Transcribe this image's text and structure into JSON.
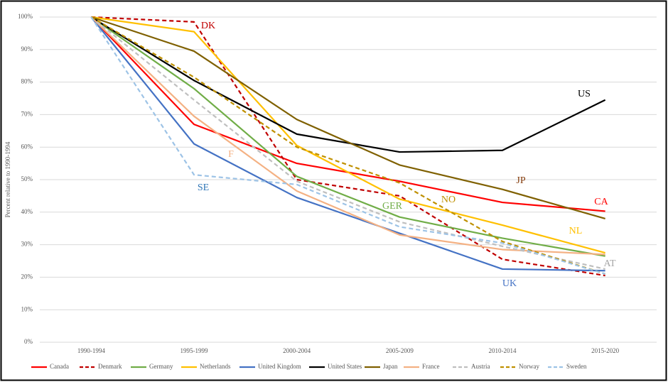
{
  "chart_data": {
    "type": "line",
    "y_label": "Percent relative to 1990-1994",
    "categories": [
      "1990-1994",
      "1995-1999",
      "2000-2004",
      "2005-2009",
      "2010-2014",
      "2015-2020"
    ],
    "ylim": [
      0,
      100
    ],
    "yticks": [
      {
        "value": 0,
        "label": "0%"
      },
      {
        "value": 10,
        "label": "10%"
      },
      {
        "value": 20,
        "label": "20%"
      },
      {
        "value": 30,
        "label": "30%"
      },
      {
        "value": 40,
        "label": "40%"
      },
      {
        "value": 50,
        "label": "50%"
      },
      {
        "value": 60,
        "label": "60%"
      },
      {
        "value": 70,
        "label": "70%"
      },
      {
        "value": 80,
        "label": "80%"
      },
      {
        "value": 90,
        "label": "90%"
      },
      {
        "value": 100,
        "label": "100%"
      }
    ],
    "grid": true,
    "series": [
      {
        "name": "Canada",
        "color": "#ff0000",
        "dash": false,
        "values": [
          100,
          67,
          55,
          49.5,
          43,
          40.3
        ]
      },
      {
        "name": "Denmark",
        "color": "#c00000",
        "dash": true,
        "values": [
          100,
          98.5,
          50,
          45,
          25.5,
          20.5
        ]
      },
      {
        "name": "Germany",
        "color": "#70ad47",
        "dash": false,
        "values": [
          100,
          78,
          51,
          38.5,
          32,
          26.5
        ]
      },
      {
        "name": "Netherlands",
        "color": "#ffc000",
        "dash": false,
        "values": [
          100,
          95.5,
          60.5,
          44,
          36,
          27.5
        ]
      },
      {
        "name": "United Kingdom",
        "color": "#4472c4",
        "dash": false,
        "values": [
          100,
          61,
          44.5,
          33.5,
          22.5,
          22
        ]
      },
      {
        "name": "United States",
        "color": "#000000",
        "dash": false,
        "values": [
          100,
          80.5,
          64,
          58.5,
          59,
          74.5
        ]
      },
      {
        "name": "Japan",
        "color": "#7f6000",
        "dash": false,
        "values": [
          100,
          89.5,
          68.5,
          54.5,
          47,
          38
        ]
      },
      {
        "name": "France",
        "color": "#f4b183",
        "dash": false,
        "values": [
          100,
          69.5,
          46.5,
          33,
          28.5,
          27
        ]
      },
      {
        "name": "Austria",
        "color": "#bfbfbf",
        "dash": true,
        "values": [
          100,
          74.5,
          49.5,
          37,
          29.5,
          22.5
        ]
      },
      {
        "name": "Norway",
        "color": "#bf9000",
        "dash": true,
        "values": [
          100,
          81.5,
          60,
          49,
          31,
          21
        ]
      },
      {
        "name": "Sweden",
        "color": "#9dc3e6",
        "dash": true,
        "values": [
          100,
          51.5,
          48.5,
          35.5,
          30.5,
          21
        ]
      }
    ],
    "annotations": [
      {
        "text": "DK",
        "color": "#c00000"
      },
      {
        "text": "US",
        "color": "#000000"
      },
      {
        "text": "JP",
        "color": "#843c0c"
      },
      {
        "text": "CA",
        "color": "#ff0000"
      },
      {
        "text": "NL",
        "color": "#ffc000"
      },
      {
        "text": "AT",
        "color": "#a6a6a6"
      },
      {
        "text": "UK",
        "color": "#4472c4"
      },
      {
        "text": "GER",
        "color": "#70ad47"
      },
      {
        "text": "NO",
        "color": "#bf9000"
      },
      {
        "text": "F",
        "color": "#f4b183"
      },
      {
        "text": "SE",
        "color": "#2e75b6"
      }
    ]
  }
}
